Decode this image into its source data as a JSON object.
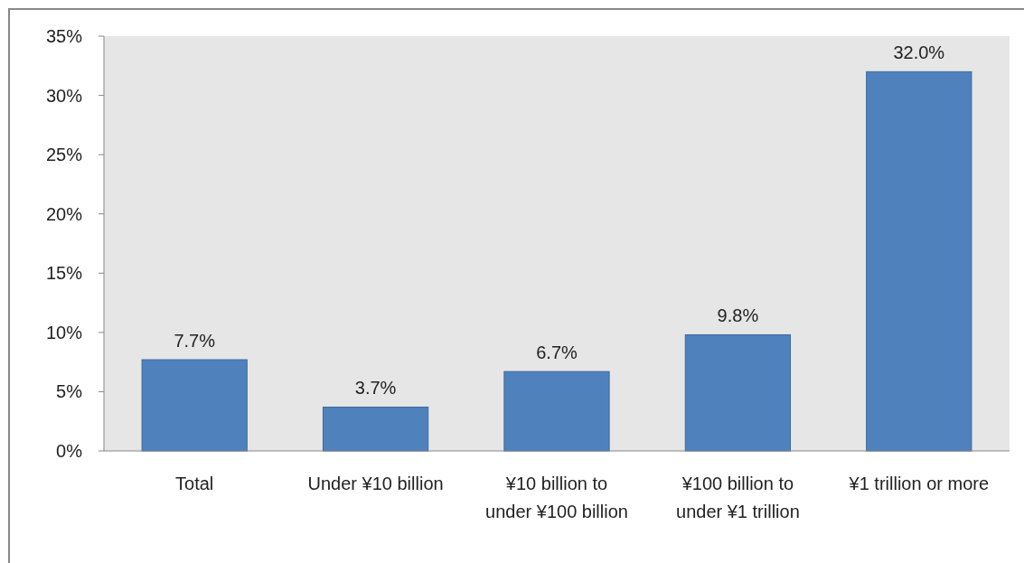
{
  "chart_data": {
    "type": "bar",
    "categories": [
      "Total",
      "Under ¥10 billion",
      "¥10 billion to under ¥100 billion",
      "¥100 billion to under ¥1 trillion",
      "¥1 trillion or more"
    ],
    "values": [
      7.7,
      3.7,
      6.7,
      9.8,
      32.0
    ],
    "value_labels": [
      "7.7%",
      "3.7%",
      "6.7%",
      "9.8%",
      "32.0%"
    ],
    "color": "#4f81bd",
    "ylim": [
      0,
      35
    ],
    "yticks": [
      {
        "value": 0,
        "label": "0%"
      },
      {
        "value": 5,
        "label": "5%"
      },
      {
        "value": 10,
        "label": "10%"
      },
      {
        "value": 15,
        "label": "15%"
      },
      {
        "value": 20,
        "label": "20%"
      },
      {
        "value": 25,
        "label": "25%"
      },
      {
        "value": 30,
        "label": "30%"
      },
      {
        "value": 35,
        "label": "35%"
      }
    ],
    "grid": false
  }
}
